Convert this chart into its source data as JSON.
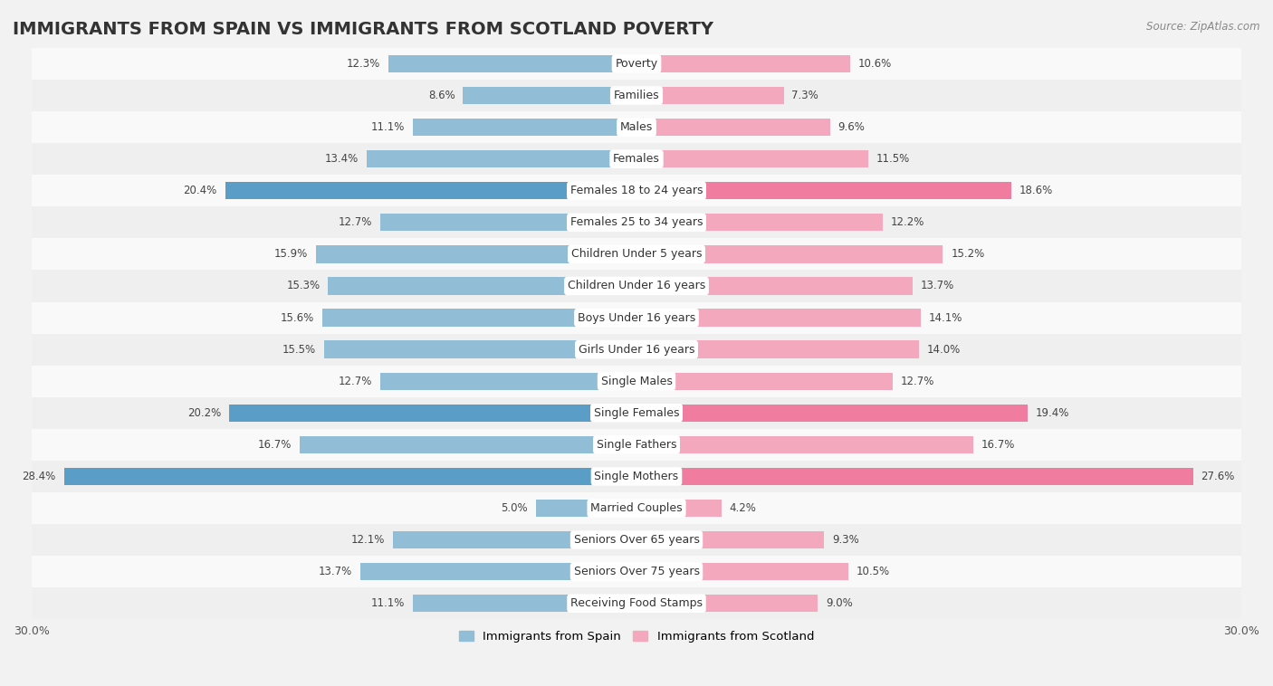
{
  "title": "IMMIGRANTS FROM SPAIN VS IMMIGRANTS FROM SCOTLAND POVERTY",
  "source": "Source: ZipAtlas.com",
  "categories": [
    "Poverty",
    "Families",
    "Males",
    "Females",
    "Females 18 to 24 years",
    "Females 25 to 34 years",
    "Children Under 5 years",
    "Children Under 16 years",
    "Boys Under 16 years",
    "Girls Under 16 years",
    "Single Males",
    "Single Females",
    "Single Fathers",
    "Single Mothers",
    "Married Couples",
    "Seniors Over 65 years",
    "Seniors Over 75 years",
    "Receiving Food Stamps"
  ],
  "spain_values": [
    12.3,
    8.6,
    11.1,
    13.4,
    20.4,
    12.7,
    15.9,
    15.3,
    15.6,
    15.5,
    12.7,
    20.2,
    16.7,
    28.4,
    5.0,
    12.1,
    13.7,
    11.1
  ],
  "scotland_values": [
    10.6,
    7.3,
    9.6,
    11.5,
    18.6,
    12.2,
    15.2,
    13.7,
    14.1,
    14.0,
    12.7,
    19.4,
    16.7,
    27.6,
    4.2,
    9.3,
    10.5,
    9.0
  ],
  "spain_color": "#91bdd6",
  "scotland_color": "#f4a8be",
  "spain_highlight_color": "#5a9ec8",
  "scotland_highlight_color": "#f07ca0",
  "highlight_rows": [
    4,
    11,
    13
  ],
  "xlim": 30.0,
  "bar_height": 0.55,
  "background_color": "#f2f2f2",
  "row_bg_colors": [
    "#f9f9f9",
    "#efefef"
  ],
  "legend_spain": "Immigrants from Spain",
  "legend_scotland": "Immigrants from Scotland",
  "title_fontsize": 14,
  "label_fontsize": 9,
  "value_fontsize": 8.5,
  "xtick_only_ends": true
}
